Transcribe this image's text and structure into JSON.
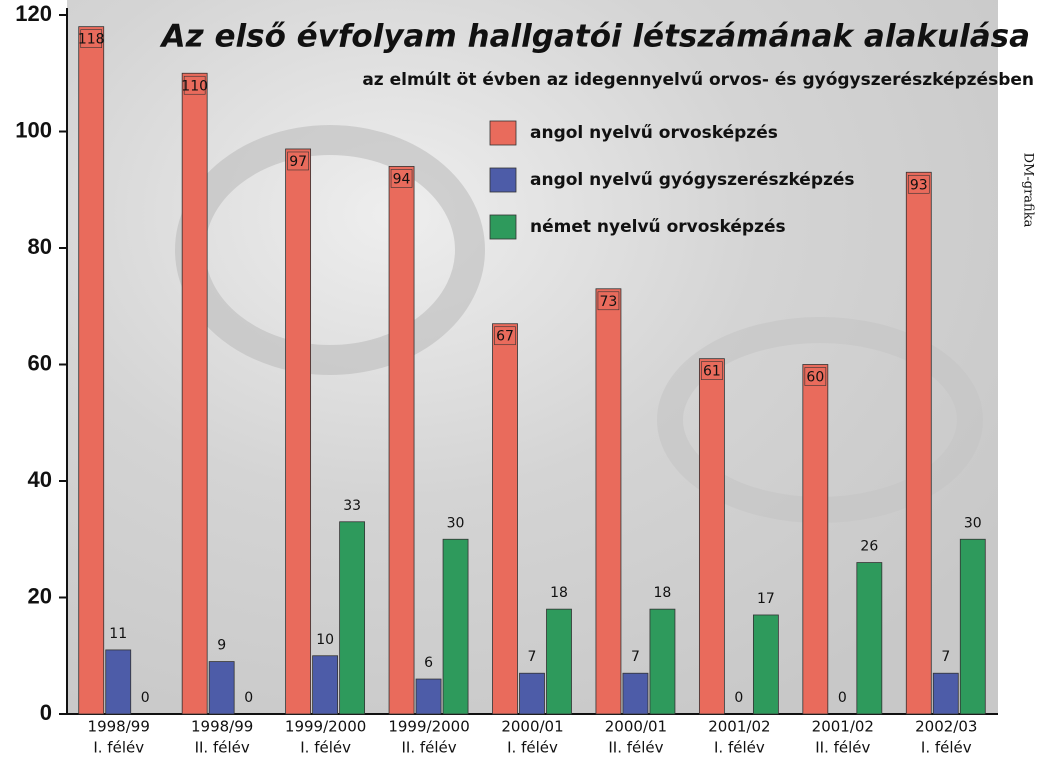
{
  "chart_data": {
    "type": "bar",
    "title": "Az első évfolyam hallgatói létszámának alakulása",
    "subtitle": "az elmúlt öt évben az idegennyelvű orvos- és gyógyszerészképzésben",
    "credit": "DM-grafika",
    "categories": [
      [
        "1998/99",
        "I. félév"
      ],
      [
        "1998/99",
        "II. félév"
      ],
      [
        "1999/2000",
        "I. félév"
      ],
      [
        "1999/2000",
        "II. félév"
      ],
      [
        "2000/01",
        "I. félév"
      ],
      [
        "2000/01",
        "II. félév"
      ],
      [
        "2001/02",
        "I. félév"
      ],
      [
        "2001/02",
        "II. félév"
      ],
      [
        "2002/03",
        "I. félév"
      ]
    ],
    "series": [
      {
        "name": "angol nyelvű orvosképzés",
        "color": "#e96b5c",
        "values": [
          118,
          110,
          97,
          94,
          67,
          73,
          61,
          60,
          93
        ]
      },
      {
        "name": "angol nyelvű gyógyszerészképzés",
        "color": "#4d5ca8",
        "values": [
          11,
          9,
          10,
          6,
          7,
          7,
          0,
          0,
          7
        ]
      },
      {
        "name": "német nyelvű orvosképzés",
        "color": "#2e9a5c",
        "values": [
          0,
          0,
          33,
          30,
          18,
          18,
          17,
          26,
          30
        ]
      }
    ],
    "ylim": [
      0,
      120
    ],
    "yticks": [
      0,
      20,
      40,
      60,
      80,
      100,
      120
    ]
  }
}
